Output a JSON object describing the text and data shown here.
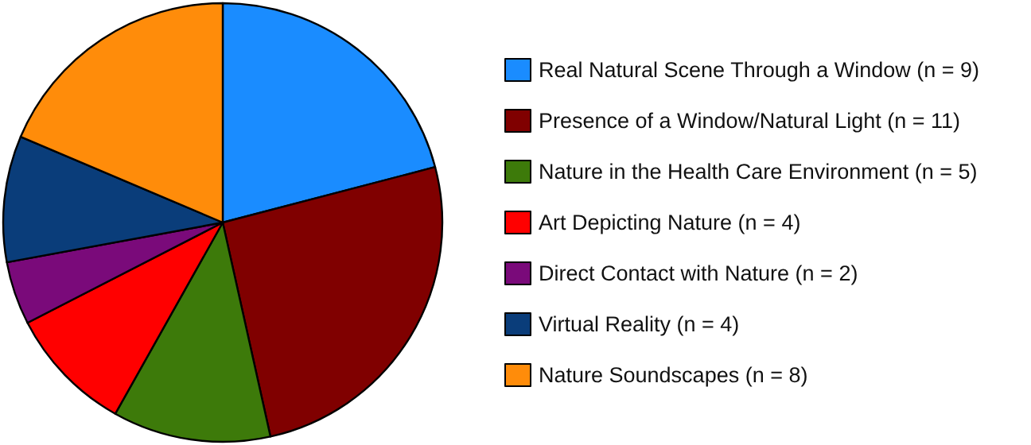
{
  "chart_data": {
    "type": "pie",
    "categories": [
      "Real Natural Scene Through a Window (n = 9)",
      "Presence of a Window/Natural Light (n = 11)",
      "Nature in the Health Care Environment (n = 5)",
      "Art Depicting Nature (n = 4)",
      "Direct Contact with Nature (n = 2)",
      "Virtual Reality (n = 4)",
      "Nature Soundscapes (n = 8)"
    ],
    "values": [
      9,
      11,
      5,
      4,
      2,
      4,
      8
    ],
    "colors": [
      "#1a8cff",
      "#800000",
      "#3d7a0a",
      "#ff0000",
      "#7a0a7a",
      "#0a3d7a",
      "#ff8c0a"
    ],
    "legend": "right"
  }
}
